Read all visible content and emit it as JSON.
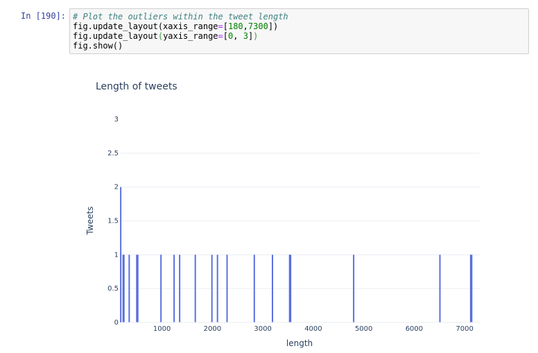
{
  "cell": {
    "prompt": "In [190]:",
    "code": {
      "line1_comment": "# Plot the outliers within the tweet length",
      "line2_pre": "fig.update_layout(xaxis_range",
      "line2_eq": "=",
      "line2_open": "[",
      "line2_n1": "180",
      "line2_comma": ",",
      "line2_n2": "7300",
      "line2_close": "])",
      "line3_pre": "fig.update_layout",
      "line3_paren_open": "(",
      "line3_arg": "yaxis_range",
      "line3_eq": "=",
      "line3_open": "[",
      "line3_n1": "0",
      "line3_comma": ", ",
      "line3_n2": "3",
      "line3_close": "]",
      "line3_paren_close": ")",
      "line4": "fig.show()"
    }
  },
  "colors": {
    "bar": "#5a6fe0",
    "grid": "#ebedf2",
    "text": "#2a3f5f"
  },
  "chart_data": {
    "type": "bar",
    "title": "Length of tweets",
    "xlabel": "length",
    "ylabel": "Tweets",
    "xlim": [
      180,
      7300
    ],
    "ylim": [
      0,
      3
    ],
    "grid": true,
    "x_ticks": [
      1000,
      2000,
      3000,
      4000,
      5000,
      6000,
      7000
    ],
    "x_tick_labels": [
      "1000",
      "2000",
      "3000",
      "4000",
      "5000",
      "6000",
      "7000"
    ],
    "y_ticks": [
      0,
      0.5,
      1,
      1.5,
      2,
      2.5,
      3
    ],
    "y_tick_labels": [
      "0",
      "0.5",
      "1",
      "1.5",
      "2",
      "2.5",
      "3"
    ],
    "x": [
      182,
      230,
      245,
      350,
      500,
      520,
      980,
      1240,
      1350,
      1660,
      1990,
      2100,
      2290,
      2830,
      3190,
      3530,
      3550,
      4800,
      6510,
      7120,
      7140
    ],
    "values": [
      2,
      1,
      1,
      1,
      1,
      1,
      1,
      1,
      1,
      1,
      1,
      1,
      1,
      1,
      1,
      1,
      1,
      1,
      1,
      1,
      1
    ]
  }
}
